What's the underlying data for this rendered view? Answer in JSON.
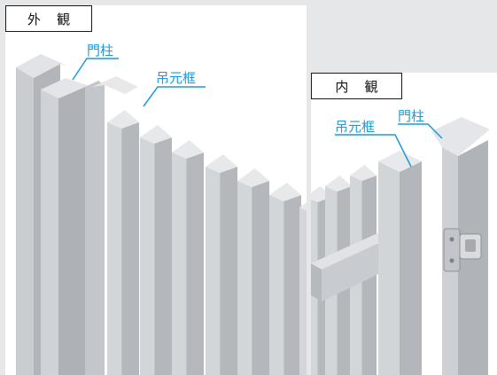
{
  "exterior": {
    "title": "外 観",
    "callouts": {
      "gate_post": "門柱",
      "hanging_frame": "吊元框"
    }
  },
  "interior": {
    "title": "内 観",
    "callouts": {
      "gate_post": "門柱",
      "hanging_frame": "吊元框"
    }
  },
  "colors": {
    "background": "#e6e7e9",
    "panel": "#ffffff",
    "callout_accent": "#1a9bd7",
    "aluminum_light": "#d7d9dc",
    "aluminum_mid": "#b9bcc0",
    "aluminum_dark": "#9da1a6"
  },
  "icons": [
    "fence-slat-illustration",
    "gate-hinge-icon"
  ]
}
